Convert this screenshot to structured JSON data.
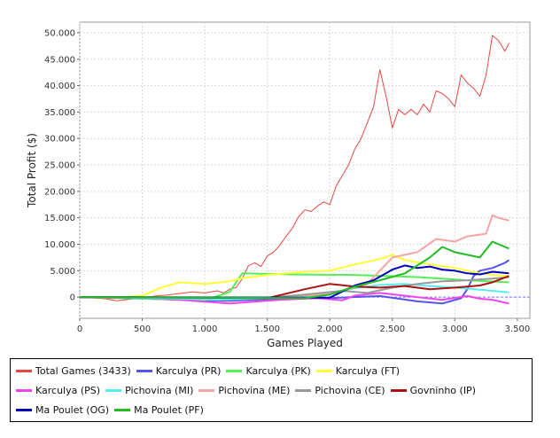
{
  "chart_data": {
    "type": "line",
    "title": "",
    "xlabel": "Games Played",
    "ylabel": "Total Profit ($)",
    "xlim": [
      0,
      3600
    ],
    "ylim": [
      -4000,
      52000
    ],
    "xticks": [
      0,
      500,
      1000,
      1500,
      2000,
      2500,
      3000,
      3500
    ],
    "xtick_labels": [
      "0",
      "500",
      "1.000",
      "1.500",
      "2.000",
      "2.500",
      "3.000",
      "3.500"
    ],
    "yticks": [
      0,
      5000,
      10000,
      15000,
      20000,
      25000,
      30000,
      35000,
      40000,
      45000,
      50000
    ],
    "ytick_labels": [
      "0",
      "5.000",
      "10.000",
      "15.000",
      "20.000",
      "25.000",
      "30.000",
      "35.000",
      "40.000",
      "45.000",
      "50.000"
    ],
    "grid": true,
    "legend_position": "bottom",
    "series": [
      {
        "name": "Total Games (3433)",
        "color": "#e8463f",
        "width": 1,
        "points": [
          [
            0,
            0
          ],
          [
            200,
            -300
          ],
          [
            300,
            -700
          ],
          [
            400,
            -400
          ],
          [
            500,
            -200
          ],
          [
            600,
            200
          ],
          [
            700,
            400
          ],
          [
            800,
            700
          ],
          [
            900,
            1000
          ],
          [
            1000,
            800
          ],
          [
            1100,
            1200
          ],
          [
            1150,
            800
          ],
          [
            1200,
            1500
          ],
          [
            1250,
            1800
          ],
          [
            1300,
            3500
          ],
          [
            1350,
            6000
          ],
          [
            1400,
            6500
          ],
          [
            1450,
            5800
          ],
          [
            1500,
            7800
          ],
          [
            1550,
            8500
          ],
          [
            1600,
            9800
          ],
          [
            1650,
            11500
          ],
          [
            1700,
            13000
          ],
          [
            1750,
            15200
          ],
          [
            1800,
            16500
          ],
          [
            1850,
            16200
          ],
          [
            1900,
            17200
          ],
          [
            1950,
            18000
          ],
          [
            2000,
            17500
          ],
          [
            2050,
            21000
          ],
          [
            2100,
            23000
          ],
          [
            2150,
            25000
          ],
          [
            2200,
            28000
          ],
          [
            2250,
            30000
          ],
          [
            2300,
            33000
          ],
          [
            2350,
            36000
          ],
          [
            2400,
            43000
          ],
          [
            2450,
            38000
          ],
          [
            2500,
            32000
          ],
          [
            2550,
            35500
          ],
          [
            2600,
            34500
          ],
          [
            2650,
            35500
          ],
          [
            2700,
            34500
          ],
          [
            2750,
            36500
          ],
          [
            2800,
            35000
          ],
          [
            2850,
            39000
          ],
          [
            2900,
            38500
          ],
          [
            2950,
            37500
          ],
          [
            3000,
            36000
          ],
          [
            3050,
            42000
          ],
          [
            3100,
            40500
          ],
          [
            3150,
            39500
          ],
          [
            3200,
            38000
          ],
          [
            3250,
            42000
          ],
          [
            3300,
            49500
          ],
          [
            3350,
            48500
          ],
          [
            3400,
            46500
          ],
          [
            3433,
            48000
          ]
        ]
      },
      {
        "name": "Karculya (PR)",
        "color": "#5555ee",
        "width": 2,
        "points": [
          [
            0,
            0
          ],
          [
            400,
            -200
          ],
          [
            800,
            -500
          ],
          [
            1200,
            -700
          ],
          [
            1600,
            -300
          ],
          [
            2000,
            -200
          ],
          [
            2400,
            200
          ],
          [
            2700,
            -800
          ],
          [
            2900,
            -1200
          ],
          [
            3050,
            -200
          ],
          [
            3100,
            1500
          ],
          [
            3150,
            4000
          ],
          [
            3200,
            5000
          ],
          [
            3300,
            5500
          ],
          [
            3400,
            6500
          ],
          [
            3433,
            7000
          ]
        ]
      },
      {
        "name": "Karculya (PK)",
        "color": "#55ee55",
        "width": 2,
        "points": [
          [
            0,
            0
          ],
          [
            1000,
            -600
          ],
          [
            1200,
            1000
          ],
          [
            1300,
            4500
          ],
          [
            1700,
            4300
          ],
          [
            2200,
            4200
          ],
          [
            2700,
            3800
          ],
          [
            3100,
            3200
          ],
          [
            3433,
            2800
          ]
        ]
      },
      {
        "name": "Karculya (FT)",
        "color": "#ffff33",
        "width": 2,
        "points": [
          [
            0,
            0
          ],
          [
            300,
            -200
          ],
          [
            500,
            300
          ],
          [
            650,
            1800
          ],
          [
            800,
            2800
          ],
          [
            1000,
            2500
          ],
          [
            1200,
            3000
          ],
          [
            1300,
            3600
          ],
          [
            1500,
            4200
          ],
          [
            1800,
            4800
          ],
          [
            2000,
            5000
          ],
          [
            2200,
            6200
          ],
          [
            2400,
            7200
          ],
          [
            2500,
            8000
          ],
          [
            2600,
            7000
          ],
          [
            2800,
            6200
          ],
          [
            3000,
            5500
          ],
          [
            3100,
            5000
          ],
          [
            3200,
            4500
          ],
          [
            3300,
            4200
          ],
          [
            3433,
            4000
          ]
        ]
      },
      {
        "name": "Karculya (PS)",
        "color": "#ee44ee",
        "width": 2,
        "points": [
          [
            0,
            0
          ],
          [
            500,
            -200
          ],
          [
            800,
            -500
          ],
          [
            1200,
            -1200
          ],
          [
            1600,
            -500
          ],
          [
            1900,
            -200
          ],
          [
            2100,
            -600
          ],
          [
            2200,
            300
          ],
          [
            2400,
            800
          ],
          [
            2700,
            0
          ],
          [
            2900,
            -500
          ],
          [
            3100,
            200
          ],
          [
            3200,
            -300
          ],
          [
            3300,
            -500
          ],
          [
            3433,
            -1200
          ]
        ]
      },
      {
        "name": "Pichovina (MI)",
        "color": "#55eeee",
        "width": 2,
        "points": [
          [
            0,
            0
          ],
          [
            800,
            -300
          ],
          [
            1100,
            -500
          ],
          [
            1500,
            -200
          ],
          [
            1800,
            100
          ],
          [
            2000,
            700
          ],
          [
            2200,
            1700
          ],
          [
            2400,
            2300
          ],
          [
            2600,
            2500
          ],
          [
            2800,
            2100
          ],
          [
            3000,
            1800
          ],
          [
            3200,
            1400
          ],
          [
            3433,
            900
          ]
        ]
      },
      {
        "name": "Pichovina (ME)",
        "color": "#f5a5a5",
        "width": 2,
        "points": [
          [
            0,
            0
          ],
          [
            1500,
            -100
          ],
          [
            2000,
            600
          ],
          [
            2300,
            2500
          ],
          [
            2500,
            7500
          ],
          [
            2700,
            8500
          ],
          [
            2850,
            11000
          ],
          [
            3000,
            10500
          ],
          [
            3100,
            11500
          ],
          [
            3250,
            12000
          ],
          [
            3300,
            15500
          ],
          [
            3350,
            15000
          ],
          [
            3433,
            14500
          ]
        ]
      },
      {
        "name": "Pichovina (CE)",
        "color": "#999999",
        "width": 2,
        "points": [
          [
            0,
            0
          ],
          [
            1500,
            -100
          ],
          [
            1800,
            500
          ],
          [
            2100,
            1200
          ],
          [
            2300,
            800
          ],
          [
            2500,
            1800
          ],
          [
            2700,
            2500
          ],
          [
            2900,
            3000
          ],
          [
            3100,
            3200
          ],
          [
            3300,
            3500
          ],
          [
            3433,
            3800
          ]
        ]
      },
      {
        "name": "Govninho (IP)",
        "color": "#aa1111",
        "width": 2,
        "points": [
          [
            0,
            0
          ],
          [
            1500,
            -200
          ],
          [
            1800,
            1500
          ],
          [
            2000,
            2500
          ],
          [
            2200,
            2000
          ],
          [
            2400,
            1800
          ],
          [
            2600,
            2100
          ],
          [
            2800,
            1500
          ],
          [
            3000,
            1800
          ],
          [
            3200,
            2200
          ],
          [
            3300,
            2800
          ],
          [
            3433,
            4000
          ]
        ]
      },
      {
        "name": "Ma Poulet (OG)",
        "color": "#0000bb",
        "width": 2,
        "points": [
          [
            0,
            0
          ],
          [
            2000,
            -100
          ],
          [
            2200,
            2200
          ],
          [
            2350,
            3200
          ],
          [
            2500,
            5200
          ],
          [
            2600,
            6000
          ],
          [
            2700,
            5500
          ],
          [
            2800,
            5800
          ],
          [
            2900,
            5200
          ],
          [
            3000,
            5000
          ],
          [
            3100,
            4500
          ],
          [
            3200,
            4300
          ],
          [
            3300,
            4800
          ],
          [
            3433,
            4500
          ]
        ]
      },
      {
        "name": "Ma Poulet (PF)",
        "color": "#22bb22",
        "width": 2,
        "points": [
          [
            0,
            0
          ],
          [
            1800,
            -200
          ],
          [
            2000,
            500
          ],
          [
            2200,
            2000
          ],
          [
            2400,
            3200
          ],
          [
            2600,
            4500
          ],
          [
            2800,
            7500
          ],
          [
            2900,
            9500
          ],
          [
            3000,
            8500
          ],
          [
            3100,
            8000
          ],
          [
            3200,
            7500
          ],
          [
            3300,
            10500
          ],
          [
            3350,
            10000
          ],
          [
            3433,
            9200
          ]
        ]
      }
    ],
    "legend_rows": [
      [
        0,
        1,
        2,
        3
      ],
      [
        4,
        5,
        6,
        7,
        8
      ],
      [
        9,
        10
      ]
    ]
  }
}
